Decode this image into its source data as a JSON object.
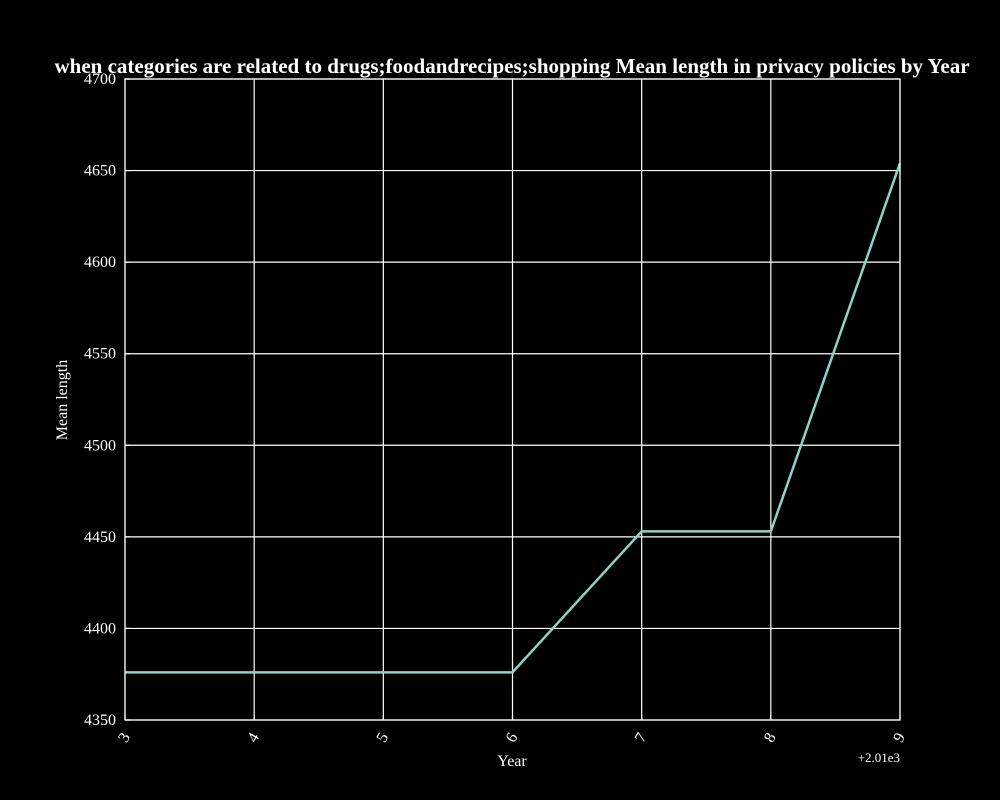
{
  "chart_data": {
    "type": "line",
    "title": "when categories are related to drugs;foodandrecipes;shopping Mean length in privacy policies by Year",
    "xlabel": "Year",
    "ylabel": "Mean length",
    "x_offset_label": "+2.01e3",
    "x": [
      3,
      4,
      5,
      6,
      7,
      8,
      9
    ],
    "x_tick_labels": [
      "3",
      "4",
      "5",
      "6",
      "7",
      "8",
      "9"
    ],
    "y_ticks": [
      4350,
      4400,
      4450,
      4500,
      4550,
      4600,
      4650,
      4700
    ],
    "y_tick_labels": [
      "4350",
      "4400",
      "4450",
      "4500",
      "4550",
      "4600",
      "4650",
      "4700"
    ],
    "xlim": [
      3,
      9
    ],
    "ylim": [
      4350,
      4700
    ],
    "grid": true,
    "series": [
      {
        "values": [
          4376,
          4376,
          4376,
          4376,
          4453,
          4453,
          4654
        ],
        "color": "#8dd3c7"
      }
    ],
    "colors": {
      "background": "#000000",
      "foreground": "#ffffff"
    }
  }
}
